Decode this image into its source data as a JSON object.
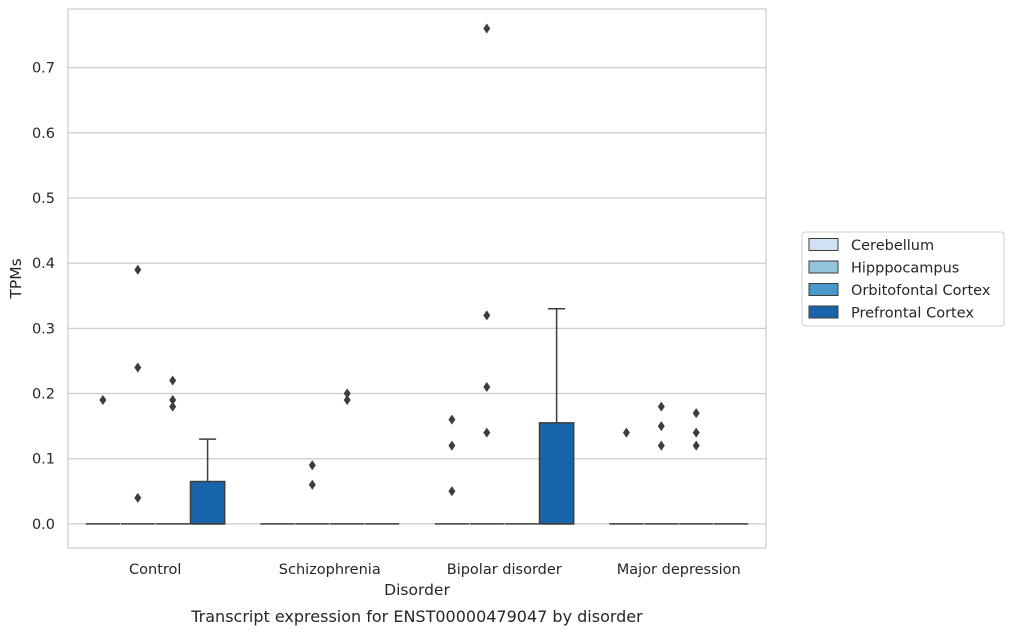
{
  "chart_data": {
    "type": "box",
    "caption": "Transcript expression for ENST00000479047 by disorder",
    "xlabel": "Disorder",
    "ylabel": "TPMs",
    "ylim": [
      -0.037,
      0.79
    ],
    "yticks": [
      0.0,
      0.1,
      0.2,
      0.3,
      0.4,
      0.5,
      0.6,
      0.7
    ],
    "ytick_labels": [
      "0.0",
      "0.1",
      "0.2",
      "0.3",
      "0.4",
      "0.5",
      "0.6",
      "0.7"
    ],
    "grid": "horizontal",
    "legend_position": "right",
    "categories": [
      "Control",
      "Schizophrenia",
      "Bipolar disorder",
      "Major depression"
    ],
    "series": [
      {
        "name": "Cerebellum",
        "color": "#cfe1f2",
        "boxes": [
          {
            "q1": 0,
            "median": 0,
            "q3": 0,
            "whisker_low": 0,
            "whisker_high": 0,
            "outliers": [
              0.19
            ]
          },
          {
            "q1": 0,
            "median": 0,
            "q3": 0,
            "whisker_low": 0,
            "whisker_high": 0,
            "outliers": []
          },
          {
            "q1": 0,
            "median": 0,
            "q3": 0,
            "whisker_low": 0,
            "whisker_high": 0,
            "outliers": [
              0.05,
              0.12,
              0.16
            ]
          },
          {
            "q1": 0,
            "median": 0,
            "q3": 0,
            "whisker_low": 0,
            "whisker_high": 0,
            "outliers": [
              0.14
            ]
          }
        ]
      },
      {
        "name": "Hipppocampus",
        "color": "#93c4de",
        "boxes": [
          {
            "q1": 0,
            "median": 0,
            "q3": 0,
            "whisker_low": 0,
            "whisker_high": 0,
            "outliers": [
              0.04,
              0.24,
              0.39
            ]
          },
          {
            "q1": 0,
            "median": 0,
            "q3": 0,
            "whisker_low": 0,
            "whisker_high": 0,
            "outliers": [
              0.06,
              0.09
            ]
          },
          {
            "q1": 0,
            "median": 0,
            "q3": 0,
            "whisker_low": 0,
            "whisker_high": 0,
            "outliers": [
              0.14,
              0.21,
              0.32,
              0.76
            ]
          },
          {
            "q1": 0,
            "median": 0,
            "q3": 0,
            "whisker_low": 0,
            "whisker_high": 0,
            "outliers": [
              0.15,
              0.18,
              0.12
            ]
          }
        ]
      },
      {
        "name": "Orbitofontal Cortex",
        "color": "#4a98c9",
        "boxes": [
          {
            "q1": 0,
            "median": 0,
            "q3": 0,
            "whisker_low": 0,
            "whisker_high": 0,
            "outliers": [
              0.18,
              0.19,
              0.22
            ]
          },
          {
            "q1": 0,
            "median": 0,
            "q3": 0,
            "whisker_low": 0,
            "whisker_high": 0,
            "outliers": [
              0.19,
              0.2
            ]
          },
          {
            "q1": 0,
            "median": 0,
            "q3": 0,
            "whisker_low": 0,
            "whisker_high": 0,
            "outliers": []
          },
          {
            "q1": 0,
            "median": 0,
            "q3": 0,
            "whisker_low": 0,
            "whisker_high": 0,
            "outliers": [
              0.12,
              0.14,
              0.17
            ]
          }
        ]
      },
      {
        "name": "Prefrontal Cortex",
        "color": "#1764ab",
        "boxes": [
          {
            "q1": 0,
            "median": 0,
            "q3": 0.065,
            "whisker_low": 0,
            "whisker_high": 0.13,
            "outliers": []
          },
          {
            "q1": 0,
            "median": 0,
            "q3": 0,
            "whisker_low": 0,
            "whisker_high": 0,
            "outliers": []
          },
          {
            "q1": 0,
            "median": 0,
            "q3": 0.155,
            "whisker_low": 0,
            "whisker_high": 0.33,
            "outliers": []
          },
          {
            "q1": 0,
            "median": 0,
            "q3": 0,
            "whisker_low": 0,
            "whisker_high": 0,
            "outliers": []
          }
        ]
      }
    ]
  }
}
